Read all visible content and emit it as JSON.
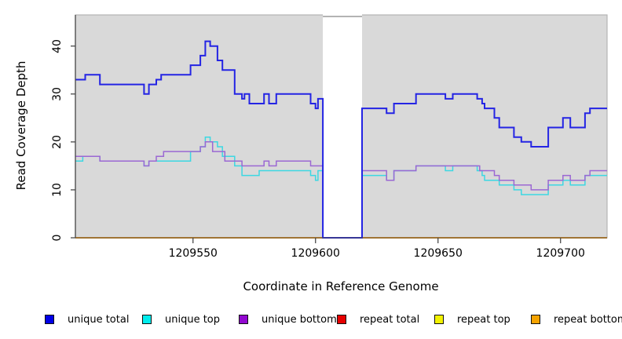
{
  "chart_data": {
    "type": "line",
    "subtype": "step-coverage-plot",
    "title": "",
    "xlabel": "Coordinate in Reference Genome",
    "ylabel": "Read Coverage Depth",
    "xlim": [
      1209502,
      1209719
    ],
    "ylim": [
      0,
      46.5
    ],
    "xticks": [
      "1209550",
      "1209600",
      "1209650",
      "1209700"
    ],
    "xtick_values": [
      1209550,
      1209600,
      1209650,
      1209700
    ],
    "yticks": [
      "0",
      "10",
      "20",
      "30",
      "40"
    ],
    "ytick_values": [
      0,
      10,
      20,
      30,
      40
    ],
    "grid": false,
    "plot_bg_color": "#d9d9d9",
    "box_color": "#b3b3b3",
    "axis_color": "#4a4a4a",
    "gap_region": {
      "x_start": 1209603,
      "x_end": 1209619,
      "fill": "#ffffff",
      "note": "no-data white mask through full plot height"
    },
    "legend_position": "bottom",
    "series": [
      {
        "name": "unique total",
        "line_color": "#2424e4",
        "swatch_color": "#0000e6",
        "width": 2,
        "steps": [
          [
            1209502,
            33
          ],
          [
            1209506,
            34
          ],
          [
            1209512,
            32
          ],
          [
            1209530,
            30
          ],
          [
            1209532,
            32
          ],
          [
            1209535,
            33
          ],
          [
            1209537,
            34
          ],
          [
            1209549,
            36
          ],
          [
            1209553,
            38
          ],
          [
            1209555,
            41
          ],
          [
            1209557,
            40
          ],
          [
            1209560,
            37
          ],
          [
            1209562,
            35
          ],
          [
            1209567,
            30
          ],
          [
            1209570,
            29
          ],
          [
            1209571,
            30
          ],
          [
            1209573,
            28
          ],
          [
            1209579,
            30
          ],
          [
            1209581,
            28
          ],
          [
            1209584,
            30
          ],
          [
            1209598,
            28
          ],
          [
            1209600,
            27
          ],
          [
            1209601,
            29
          ],
          [
            1209603,
            0
          ],
          [
            1209619,
            27
          ],
          [
            1209629,
            26
          ],
          [
            1209632,
            28
          ],
          [
            1209641,
            30
          ],
          [
            1209653,
            29
          ],
          [
            1209656,
            30
          ],
          [
            1209666,
            29
          ],
          [
            1209668,
            28
          ],
          [
            1209669,
            27
          ],
          [
            1209673,
            25
          ],
          [
            1209675,
            23
          ],
          [
            1209681,
            21
          ],
          [
            1209684,
            20
          ],
          [
            1209688,
            19
          ],
          [
            1209695,
            23
          ],
          [
            1209701,
            25
          ],
          [
            1209704,
            23
          ],
          [
            1209710,
            26
          ],
          [
            1209712,
            27
          ],
          [
            1209719,
            27
          ]
        ]
      },
      {
        "name": "unique top",
        "line_color": "#3cd8e2",
        "swatch_color": "#00eded",
        "width": 1.5,
        "steps": [
          [
            1209502,
            16
          ],
          [
            1209505,
            17
          ],
          [
            1209512,
            16
          ],
          [
            1209530,
            15
          ],
          [
            1209532,
            16
          ],
          [
            1209549,
            18
          ],
          [
            1209553,
            19
          ],
          [
            1209555,
            21
          ],
          [
            1209557,
            20
          ],
          [
            1209560,
            19
          ],
          [
            1209562,
            17
          ],
          [
            1209567,
            15
          ],
          [
            1209570,
            13
          ],
          [
            1209577,
            14
          ],
          [
            1209598,
            13
          ],
          [
            1209600,
            12
          ],
          [
            1209601,
            14
          ],
          [
            1209603,
            0
          ],
          [
            1209619,
            13
          ],
          [
            1209629,
            12
          ],
          [
            1209632,
            14
          ],
          [
            1209641,
            15
          ],
          [
            1209653,
            14
          ],
          [
            1209656,
            15
          ],
          [
            1209666,
            14
          ],
          [
            1209668,
            13
          ],
          [
            1209669,
            12
          ],
          [
            1209675,
            11
          ],
          [
            1209681,
            10
          ],
          [
            1209684,
            9
          ],
          [
            1209695,
            11
          ],
          [
            1209701,
            12
          ],
          [
            1209704,
            11
          ],
          [
            1209710,
            13
          ],
          [
            1209719,
            13
          ]
        ]
      },
      {
        "name": "unique bottom",
        "line_color": "#9b68d3",
        "swatch_color": "#9208d0",
        "width": 1.5,
        "steps": [
          [
            1209502,
            17
          ],
          [
            1209512,
            16
          ],
          [
            1209530,
            15
          ],
          [
            1209532,
            16
          ],
          [
            1209535,
            17
          ],
          [
            1209538,
            18
          ],
          [
            1209553,
            19
          ],
          [
            1209555,
            20
          ],
          [
            1209558,
            18
          ],
          [
            1209563,
            16
          ],
          [
            1209570,
            15
          ],
          [
            1209579,
            16
          ],
          [
            1209581,
            15
          ],
          [
            1209584,
            16
          ],
          [
            1209598,
            15
          ],
          [
            1209603,
            0
          ],
          [
            1209619,
            14
          ],
          [
            1209629,
            12
          ],
          [
            1209632,
            14
          ],
          [
            1209641,
            15
          ],
          [
            1209667,
            14
          ],
          [
            1209673,
            13
          ],
          [
            1209675,
            12
          ],
          [
            1209681,
            11
          ],
          [
            1209688,
            10
          ],
          [
            1209695,
            12
          ],
          [
            1209701,
            13
          ],
          [
            1209704,
            12
          ],
          [
            1209710,
            13
          ],
          [
            1209712,
            14
          ],
          [
            1209719,
            14
          ]
        ]
      },
      {
        "name": "repeat total",
        "line_color": "#e60000",
        "swatch_color": "#e60000",
        "width": 1.5,
        "steps": [
          [
            1209502,
            0
          ],
          [
            1209719,
            0
          ]
        ]
      },
      {
        "name": "repeat top",
        "line_color": "#f0f000",
        "swatch_color": "#f2f200",
        "width": 1.5,
        "steps": [
          [
            1209502,
            0
          ],
          [
            1209719,
            0
          ]
        ]
      },
      {
        "name": "repeat bottom",
        "line_color": "#f59d20",
        "swatch_color": "#f5a300",
        "width": 2,
        "steps": [
          [
            1209502,
            0
          ],
          [
            1209719,
            0
          ]
        ]
      }
    ],
    "legend": [
      {
        "label": "unique total",
        "color": "#0000e6"
      },
      {
        "label": "unique top",
        "color": "#00eded"
      },
      {
        "label": "unique bottom",
        "color": "#9208d0"
      },
      {
        "label": "repeat total",
        "color": "#e60000"
      },
      {
        "label": "repeat top",
        "color": "#f2f200"
      },
      {
        "label": "repeat bottom",
        "color": "#f5a300"
      }
    ]
  }
}
